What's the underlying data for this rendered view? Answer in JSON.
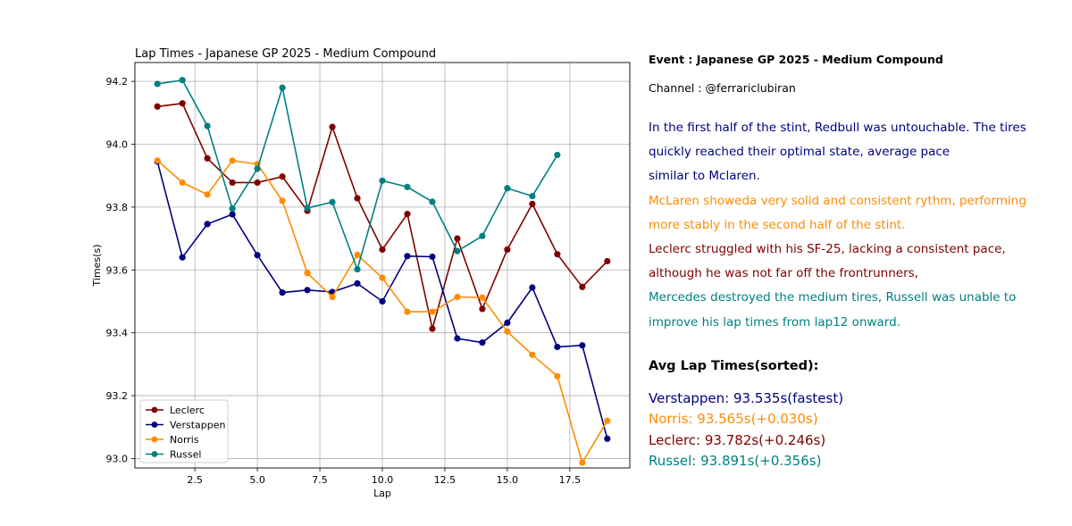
{
  "chart_data": {
    "type": "line",
    "title": "Lap Times - Japanese GP 2025 - Medium Compound",
    "xlabel": "Lap",
    "ylabel": "Times(s)",
    "xlim": [
      0.1,
      19.9
    ],
    "ylim": [
      92.97,
      94.26
    ],
    "xticks": [
      2.5,
      5.0,
      7.5,
      10.0,
      12.5,
      15.0,
      17.5
    ],
    "xtick_labels": [
      "2.5",
      "5.0",
      "7.5",
      "10.0",
      "12.5",
      "15.0",
      "17.5"
    ],
    "yticks": [
      93.0,
      93.2,
      93.4,
      93.6,
      93.8,
      94.0,
      94.2
    ],
    "ytick_labels": [
      "93.0",
      "93.2",
      "93.4",
      "93.6",
      "93.8",
      "94.0",
      "94.2"
    ],
    "grid": true,
    "legend_position": "lower-left",
    "series": [
      {
        "name": "Leclerc",
        "color": "#800000",
        "x": [
          1,
          2,
          3,
          4,
          5,
          6,
          7,
          8,
          9,
          10,
          11,
          12,
          13,
          14,
          15,
          16,
          17,
          18,
          19
        ],
        "y": [
          94.12,
          94.13,
          93.955,
          93.878,
          93.878,
          93.897,
          93.788,
          94.055,
          93.828,
          93.665,
          93.778,
          93.413,
          93.7,
          93.476,
          93.665,
          93.81,
          93.65,
          93.546,
          93.628
        ]
      },
      {
        "name": "Verstappen",
        "color": "#000080",
        "x": [
          1,
          2,
          3,
          4,
          5,
          6,
          7,
          8,
          9,
          10,
          11,
          12,
          13,
          14,
          15,
          16,
          17,
          18,
          19
        ],
        "y": [
          93.945,
          93.64,
          93.746,
          93.777,
          93.647,
          93.528,
          93.536,
          93.53,
          93.557,
          93.5,
          93.644,
          93.642,
          93.382,
          93.369,
          93.432,
          93.544,
          93.355,
          93.36,
          93.063
        ]
      },
      {
        "name": "Norris",
        "color": "#ff8c00",
        "x": [
          1,
          2,
          3,
          4,
          5,
          6,
          7,
          8,
          9,
          10,
          11,
          12,
          13,
          14,
          15,
          16,
          17,
          18,
          19
        ],
        "y": [
          93.948,
          93.878,
          93.84,
          93.948,
          93.937,
          93.82,
          93.59,
          93.514,
          93.648,
          93.575,
          93.467,
          93.467,
          93.514,
          93.512,
          93.404,
          93.33,
          93.262,
          92.987,
          93.12
        ]
      },
      {
        "name": "Russel",
        "color": "#008080",
        "x": [
          1,
          2,
          3,
          4,
          5,
          6,
          7,
          8,
          9,
          10,
          11,
          12,
          13,
          14,
          15,
          16,
          17
        ],
        "y": [
          94.192,
          94.204,
          94.058,
          93.795,
          93.922,
          94.18,
          93.797,
          93.816,
          93.602,
          93.884,
          93.864,
          93.817,
          93.66,
          93.708,
          93.86,
          93.835,
          93.966
        ]
      }
    ]
  },
  "panel": {
    "event": "Event : Japanese GP 2025 - Medium Compound",
    "channel": "Channel : @ferrariclubiran",
    "notes": [
      {
        "text": "In the first half of the stint, Redbull was untouchable. The tires",
        "color": "#000080"
      },
      {
        "text": "quickly reached their optimal state, average pace",
        "color": "#000080"
      },
      {
        "text": "similar to Mclaren.",
        "color": "#000080"
      },
      {
        "text": "McLaren showeda very solid and consistent rythm, performing",
        "color": "#ff8c00"
      },
      {
        "text": "more stably in the second half of the stint.",
        "color": "#ff8c00"
      },
      {
        "text": "Leclerc struggled with his SF-25, lacking a consistent pace,",
        "color": "#800000"
      },
      {
        "text": "although he was not far off the frontrunners,",
        "color": "#800000"
      },
      {
        "text": "Mercedes destroyed the medium tires, Russell was unable to",
        "color": "#008080"
      },
      {
        "text": "improve his lap times from lap12 onward.",
        "color": "#008080"
      }
    ],
    "avg_title": "Avg Lap Times(sorted):",
    "avg_lines": [
      {
        "text": "Verstappen: 93.535s(fastest)",
        "color": "#000080"
      },
      {
        "text": "Norris: 93.565s(+0.030s)",
        "color": "#ff8c00"
      },
      {
        "text": "Leclerc: 93.782s(+0.246s)",
        "color": "#800000"
      },
      {
        "text": "Russel: 93.891s(+0.356s)",
        "color": "#008080"
      }
    ]
  }
}
